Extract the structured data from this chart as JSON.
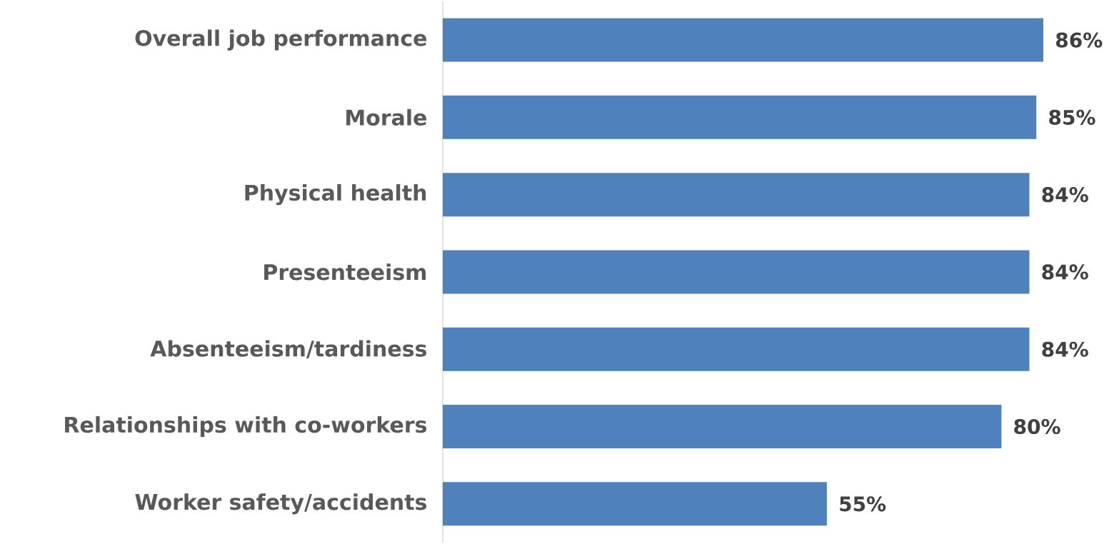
{
  "chart_data": {
    "type": "bar",
    "orientation": "horizontal",
    "categories": [
      "Overall job performance",
      "Morale",
      "Physical health",
      "Presenteeism",
      "Absenteeism/tardiness",
      "Relationships with co-workers",
      "Worker safety/accidents"
    ],
    "values": [
      86,
      85,
      84,
      84,
      84,
      80,
      55
    ],
    "value_labels": [
      "86%",
      "85%",
      "84%",
      "84%",
      "84%",
      "80%",
      "55%"
    ],
    "color": "#4f81bd",
    "tick_labels": "y"
  }
}
